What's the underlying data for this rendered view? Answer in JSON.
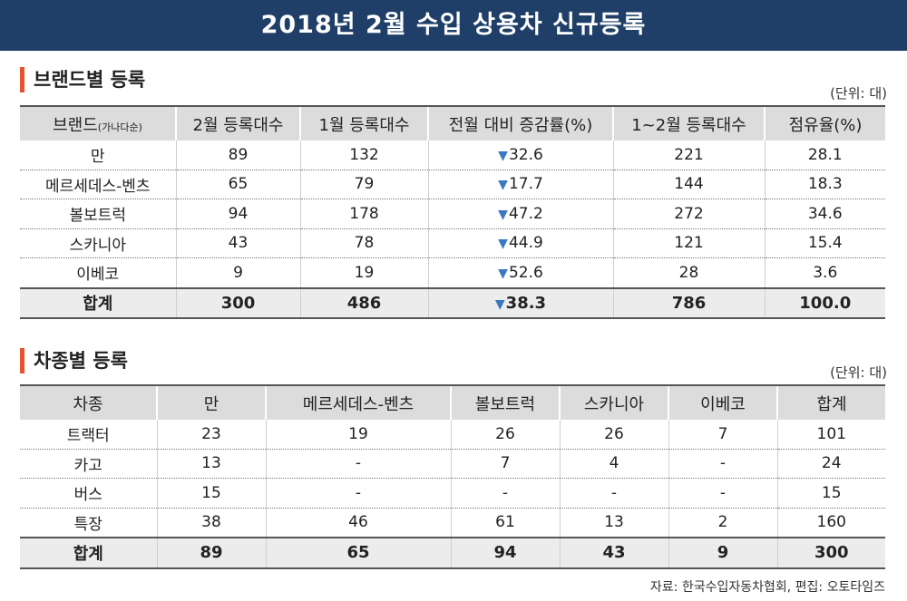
{
  "title": "2018년 2월 수입 상용차 신규등록",
  "brand_section": {
    "heading": "브랜드별 등록",
    "unit": "(단위: 대)",
    "columns": [
      "브랜드",
      "2월 등록대수",
      "1월 등록대수",
      "전월 대비 증감률(%)",
      "1~2월 등록대수",
      "점유율(%)"
    ],
    "brand_col_note": "(가나다순)",
    "rows": [
      [
        "만",
        "89",
        "132",
        "32.6",
        "221",
        "28.1"
      ],
      [
        "메르세데스-벤츠",
        "65",
        "79",
        "17.7",
        "144",
        "18.3"
      ],
      [
        "볼보트럭",
        "94",
        "178",
        "47.2",
        "272",
        "34.6"
      ],
      [
        "스카니아",
        "43",
        "78",
        "44.9",
        "121",
        "15.4"
      ],
      [
        "이베코",
        "9",
        "19",
        "52.6",
        "28",
        "3.6"
      ]
    ],
    "total": [
      "합계",
      "300",
      "486",
      "38.3",
      "786",
      "100.0"
    ],
    "down_marker": "▼"
  },
  "type_section": {
    "heading": "차종별 등록",
    "unit": "(단위: 대)",
    "columns": [
      "차종",
      "만",
      "메르세데스-벤츠",
      "볼보트럭",
      "스카니아",
      "이베코",
      "합계"
    ],
    "rows": [
      [
        "트랙터",
        "23",
        "19",
        "26",
        "26",
        "7",
        "101"
      ],
      [
        "카고",
        "13",
        "-",
        "7",
        "4",
        "-",
        "24"
      ],
      [
        "버스",
        "15",
        "-",
        "-",
        "-",
        "-",
        "15"
      ],
      [
        "특장",
        "38",
        "46",
        "61",
        "13",
        "2",
        "160"
      ]
    ],
    "total": [
      "합계",
      "89",
      "65",
      "94",
      "43",
      "9",
      "300"
    ]
  },
  "source": "자료: 한국수입자동차협회,   편집: 오토타임즈"
}
